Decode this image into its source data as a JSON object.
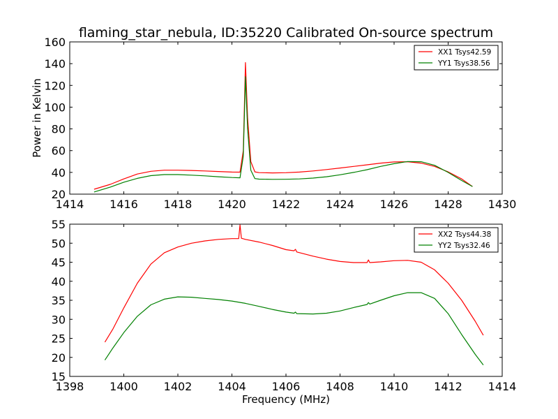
{
  "chart_data": [
    {
      "type": "line",
      "title": "flaming_star_nebula, ID:35220 Calibrated On-source spectrum",
      "xlabel": "",
      "ylabel": "Power in Kelvin",
      "xlim": [
        1414,
        1430
      ],
      "ylim": [
        20,
        160
      ],
      "xticks": [
        1414,
        1416,
        1418,
        1420,
        1422,
        1424,
        1426,
        1428,
        1430
      ],
      "yticks": [
        20,
        40,
        60,
        80,
        100,
        120,
        140,
        160
      ],
      "legend_position": "top-right",
      "series": [
        {
          "name": "XX1 Tsys42.59",
          "color": "#ff0000",
          "x": [
            1414.9,
            1415.5,
            1416.0,
            1416.5,
            1417.0,
            1417.5,
            1418.0,
            1418.5,
            1419.0,
            1419.5,
            1420.0,
            1420.3,
            1420.42,
            1420.5,
            1420.58,
            1420.7,
            1420.85,
            1421.0,
            1421.5,
            1422.0,
            1422.5,
            1423.0,
            1423.5,
            1424.0,
            1424.5,
            1425.0,
            1425.5,
            1426.0,
            1426.5,
            1427.0,
            1427.5,
            1428.0,
            1428.5,
            1428.9
          ],
          "y": [
            24.5,
            29,
            34,
            38.5,
            41,
            42,
            42,
            41.8,
            41.3,
            40.8,
            40.3,
            40.2,
            60,
            141,
            90,
            50,
            40.5,
            39.8,
            39.5,
            39.7,
            40.3,
            41.3,
            42.6,
            44,
            45.5,
            47,
            48.5,
            49.6,
            49.8,
            48.5,
            45.5,
            40.5,
            34,
            27
          ]
        },
        {
          "name": "YY1 Tsys38.56",
          "color": "#008000",
          "x": [
            1414.9,
            1415.5,
            1416.0,
            1416.5,
            1417.0,
            1417.5,
            1418.0,
            1418.5,
            1419.0,
            1419.5,
            1420.0,
            1420.3,
            1420.42,
            1420.5,
            1420.58,
            1420.7,
            1420.85,
            1421.0,
            1421.5,
            1422.0,
            1422.5,
            1423.0,
            1423.5,
            1424.0,
            1424.5,
            1425.0,
            1425.5,
            1426.0,
            1426.5,
            1427.0,
            1427.5,
            1428.0,
            1428.5,
            1428.9
          ],
          "y": [
            22,
            26.5,
            31,
            34.5,
            37,
            38,
            38,
            37.5,
            36.8,
            36,
            35.3,
            35,
            55,
            128,
            80,
            42,
            34.3,
            33.8,
            33.6,
            33.7,
            34,
            34.8,
            36,
            37.8,
            40,
            42.5,
            45.5,
            48,
            50,
            49.8,
            46.5,
            40,
            32.5,
            27
          ]
        }
      ]
    },
    {
      "type": "line",
      "title": "",
      "xlabel": "Frequency (MHz)",
      "ylabel": "",
      "xlim": [
        1398,
        1414
      ],
      "ylim": [
        15,
        55
      ],
      "xticks": [
        1398,
        1400,
        1402,
        1404,
        1406,
        1408,
        1410,
        1412,
        1414
      ],
      "yticks": [
        15,
        20,
        25,
        30,
        35,
        40,
        45,
        50,
        55
      ],
      "legend_position": "top-right",
      "series": [
        {
          "name": "XX2 Tsys44.38",
          "color": "#ff0000",
          "x": [
            1399.3,
            1399.6,
            1400.0,
            1400.5,
            1401.0,
            1401.5,
            1402.0,
            1402.5,
            1403.0,
            1403.5,
            1404.0,
            1404.25,
            1404.3,
            1404.35,
            1404.5,
            1405.0,
            1405.5,
            1406.0,
            1406.3,
            1406.35,
            1406.4,
            1407.0,
            1407.5,
            1408.0,
            1408.5,
            1409.0,
            1409.05,
            1409.1,
            1409.5,
            1410.0,
            1410.5,
            1411.0,
            1411.5,
            1412.0,
            1412.5,
            1413.0,
            1413.3
          ],
          "y": [
            24,
            27.5,
            33,
            39.5,
            44.5,
            47.5,
            49,
            50,
            50.6,
            51,
            51.2,
            51.2,
            54.8,
            51.3,
            51,
            50.3,
            49.4,
            48.3,
            48,
            48.4,
            47.7,
            46.6,
            45.8,
            45.2,
            44.9,
            44.9,
            45.6,
            44.9,
            45.1,
            45.4,
            45.5,
            45,
            43,
            39.5,
            35,
            29.5,
            25.8
          ]
        },
        {
          "name": "YY2 Tsys32.46",
          "color": "#008000",
          "x": [
            1399.3,
            1399.6,
            1400.0,
            1400.5,
            1401.0,
            1401.5,
            1402.0,
            1402.5,
            1403.0,
            1403.5,
            1404.0,
            1404.5,
            1405.0,
            1405.5,
            1406.0,
            1406.3,
            1406.35,
            1406.4,
            1407.0,
            1407.5,
            1408.0,
            1408.5,
            1409.0,
            1409.05,
            1409.1,
            1409.5,
            1410.0,
            1410.5,
            1411.0,
            1411.5,
            1412.0,
            1412.5,
            1413.0,
            1413.3
          ],
          "y": [
            19.3,
            22.5,
            26.5,
            30.8,
            33.8,
            35.3,
            35.9,
            35.8,
            35.5,
            35.2,
            34.8,
            34.2,
            33.4,
            32.6,
            31.9,
            31.6,
            31.9,
            31.5,
            31.4,
            31.6,
            32.2,
            33.1,
            33.9,
            34.4,
            34,
            35,
            36.2,
            37,
            37,
            35.5,
            31.5,
            26,
            20.8,
            18
          ]
        }
      ]
    }
  ]
}
